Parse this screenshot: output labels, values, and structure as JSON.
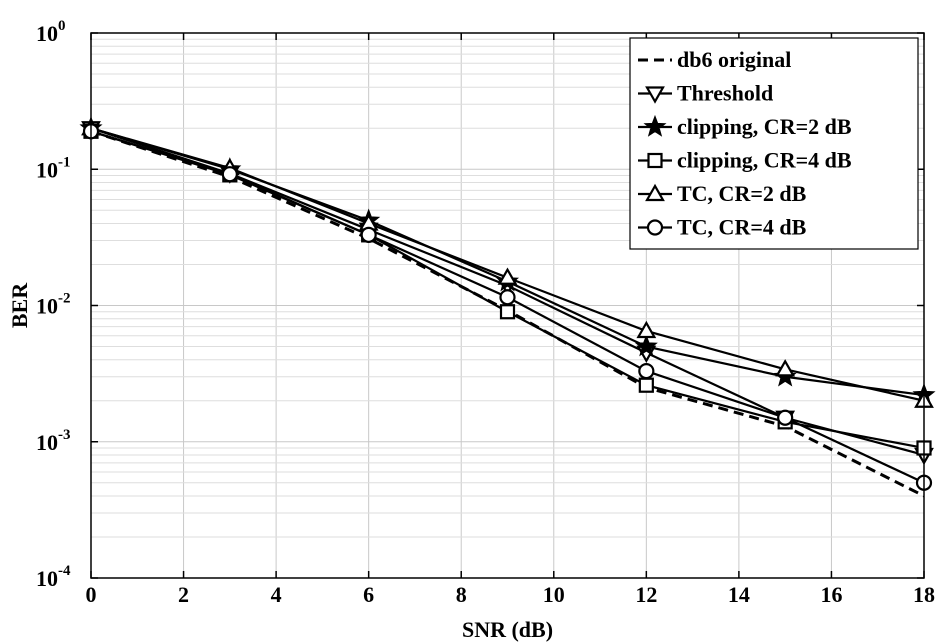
{
  "chart_data": {
    "type": "line",
    "xlabel": "SNR (dB)",
    "ylabel": "BER",
    "xlim": [
      0,
      18
    ],
    "ylim": [
      0.0001,
      1
    ],
    "yscale": "log",
    "x_ticks": [
      0,
      2,
      4,
      6,
      8,
      10,
      12,
      14,
      16,
      18
    ],
    "y_ticks": [
      {
        "value": 0.0001,
        "base": "10",
        "exp": "-4"
      },
      {
        "value": 0.001,
        "base": "10",
        "exp": "-3"
      },
      {
        "value": 0.01,
        "base": "10",
        "exp": "-2"
      },
      {
        "value": 0.1,
        "base": "10",
        "exp": "-1"
      },
      {
        "value": 1,
        "base": "10",
        "exp": "0"
      }
    ],
    "grid": true,
    "legend_position": "top-right",
    "x": [
      0,
      3,
      6,
      9,
      12,
      15,
      18
    ],
    "series": [
      {
        "name": "db6 original",
        "marker": "none",
        "dashed": true,
        "values": [
          0.19,
          0.088,
          0.031,
          0.0092,
          0.0025,
          0.0013,
          0.0004
        ]
      },
      {
        "name": "Threshold",
        "marker": "triangle-down",
        "dashed": false,
        "values": [
          0.2,
          0.093,
          0.036,
          0.014,
          0.0045,
          0.0015,
          0.0008
        ]
      },
      {
        "name": "clipping, CR=2 dB",
        "marker": "star",
        "dashed": false,
        "values": [
          0.2,
          0.1,
          0.042,
          0.015,
          0.005,
          0.003,
          0.0022
        ]
      },
      {
        "name": "clipping, CR=4 dB",
        "marker": "square",
        "dashed": false,
        "values": [
          0.19,
          0.091,
          0.033,
          0.009,
          0.0026,
          0.0014,
          0.0009
        ]
      },
      {
        "name": "TC, CR=2 dB",
        "marker": "triangle-up",
        "dashed": false,
        "values": [
          0.2,
          0.102,
          0.04,
          0.016,
          0.0065,
          0.0034,
          0.002
        ]
      },
      {
        "name": "TC, CR=4 dB",
        "marker": "circle",
        "dashed": false,
        "values": [
          0.19,
          0.092,
          0.033,
          0.0115,
          0.0033,
          0.0015,
          0.0005
        ]
      }
    ]
  }
}
